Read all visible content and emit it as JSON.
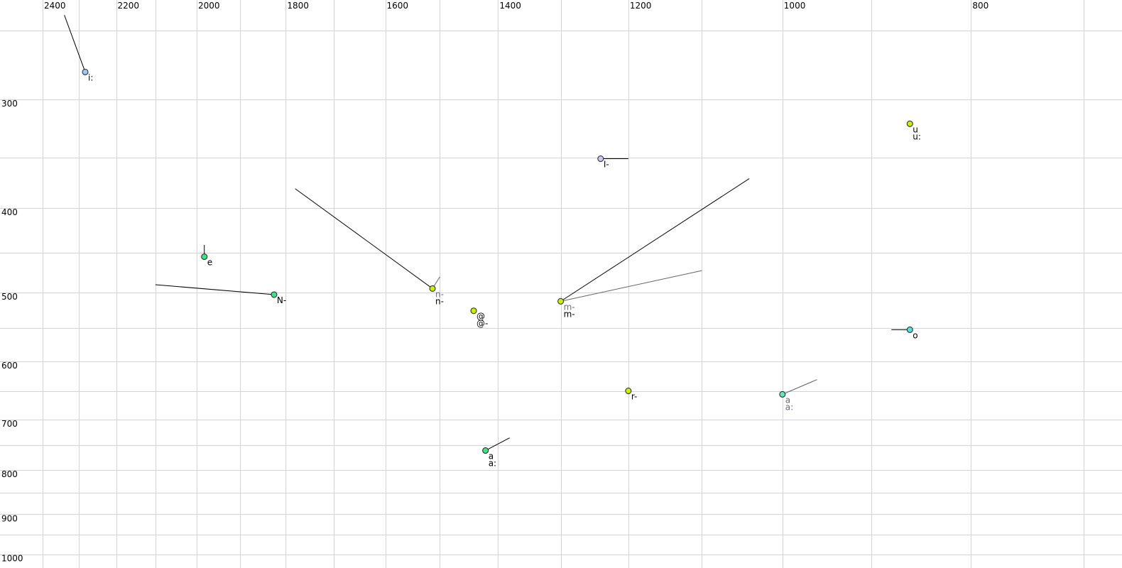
{
  "chart_data": {
    "type": "scatter",
    "title": "",
    "xlabel": "",
    "ylabel": "",
    "x_scale": "log",
    "y_scale": "log",
    "x_reversed": true,
    "xlim": [
      2400,
      700
    ],
    "ylim": [
      250,
      1000
    ],
    "grid": true,
    "x_grid_step": 100,
    "y_grid_step": 50,
    "x_ticks": [
      2400,
      2200,
      2000,
      1800,
      1600,
      1400,
      1200,
      1000,
      800
    ],
    "y_ticks": [
      300,
      400,
      500,
      600,
      700,
      800,
      900,
      1000
    ],
    "points": [
      {
        "labels": [
          "i:"
        ],
        "label_colors": [
          "#000000"
        ],
        "x": 2282,
        "y": 279,
        "fill": "#9fc5f0",
        "trails": [
          {
            "x": 2339,
            "y": 240,
            "color": "#000000"
          }
        ]
      },
      {
        "labels": [
          "e"
        ],
        "label_colors": [
          "#000000"
        ],
        "x": 1982,
        "y": 455,
        "fill": "#44e08a",
        "trails": [
          {
            "x": 1982,
            "y": 441,
            "color": "#000000"
          }
        ]
      },
      {
        "labels": [
          "N-"
        ],
        "label_colors": [
          "#000000"
        ],
        "x": 1825,
        "y": 503,
        "fill": "#44e08a",
        "trails": [
          {
            "x": 2100,
            "y": 490,
            "color": "#000000"
          }
        ]
      },
      {
        "labels": [
          "n-",
          "n-"
        ],
        "label_colors": [
          "#6a6a8a",
          "#000000"
        ],
        "x": 1513,
        "y": 495,
        "fill": "#ccee00",
        "trails": [
          {
            "x": 1780,
            "y": 380,
            "color": "#000000"
          },
          {
            "x": 1500,
            "y": 480,
            "color": "#666666"
          }
        ]
      },
      {
        "labels": [
          "@",
          "@-"
        ],
        "label_colors": [
          "#000000",
          "#000000"
        ],
        "x": 1441,
        "y": 525,
        "fill": "#ccee00",
        "trails": []
      },
      {
        "labels": [
          "m-",
          "m-"
        ],
        "label_colors": [
          "#6a6a8a",
          "#000000"
        ],
        "x": 1300,
        "y": 512,
        "fill": "#ccee00",
        "trails": [
          {
            "x": 1040,
            "y": 370,
            "color": "#000000"
          },
          {
            "x": 1100,
            "y": 472,
            "color": "#666666"
          }
        ]
      },
      {
        "labels": [
          "I-"
        ],
        "label_colors": [
          "#000000"
        ],
        "x": 1240,
        "y": 351,
        "fill": "#c8c8f0",
        "trails": [
          {
            "x": 1200,
            "y": 351,
            "color": "#000000"
          }
        ]
      },
      {
        "labels": [
          "r-"
        ],
        "label_colors": [
          "#000000"
        ],
        "x": 1200,
        "y": 649,
        "fill": "#ccee00",
        "trails": [
          {
            "x": 1200,
            "y": 645,
            "color": "#000000"
          }
        ]
      },
      {
        "labels": [
          "a",
          "a:"
        ],
        "label_colors": [
          "#000000",
          "#000000"
        ],
        "x": 1421,
        "y": 760,
        "fill": "#44e08a",
        "trails": [
          {
            "x": 1381,
            "y": 735,
            "color": "#000000"
          }
        ]
      },
      {
        "labels": [
          "a",
          "a:"
        ],
        "label_colors": [
          "#6a6a8a",
          "#6a6a8a"
        ],
        "x": 1000,
        "y": 655,
        "fill": "#60e8b8",
        "trails": [
          {
            "x": 960,
            "y": 630,
            "color": "#555555"
          }
        ]
      },
      {
        "labels": [
          "u",
          "u:"
        ],
        "label_colors": [
          "#000000",
          "#000000"
        ],
        "x": 860,
        "y": 320,
        "fill": "#ccee00",
        "trails": []
      },
      {
        "labels": [
          "o"
        ],
        "label_colors": [
          "#000000"
        ],
        "x": 860,
        "y": 552,
        "fill": "#50e0d8",
        "trails": [
          {
            "x": 879,
            "y": 552,
            "color": "#000000"
          }
        ]
      }
    ]
  }
}
